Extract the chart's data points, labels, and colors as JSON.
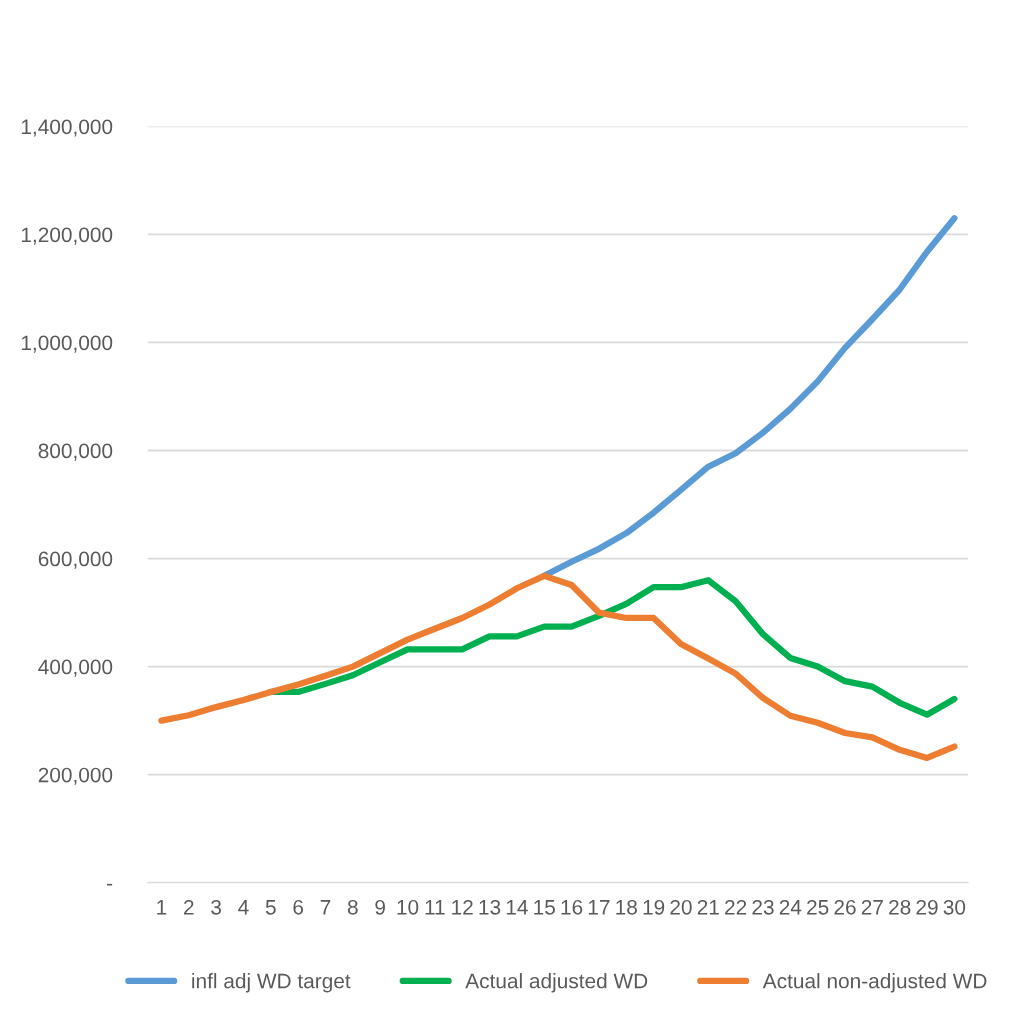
{
  "chart_data": {
    "type": "line",
    "categories": [
      "1",
      "2",
      "3",
      "4",
      "5",
      "6",
      "7",
      "8",
      "9",
      "10",
      "11",
      "12",
      "13",
      "14",
      "15",
      "16",
      "17",
      "18",
      "19",
      "20",
      "21",
      "22",
      "23",
      "24",
      "25",
      "26",
      "27",
      "28",
      "29",
      "30"
    ],
    "series": [
      {
        "name": "infl adj WD target",
        "color": "#5b9bd5",
        "values": [
          null,
          null,
          null,
          null,
          null,
          null,
          null,
          null,
          null,
          null,
          null,
          null,
          null,
          null,
          568000,
          594000,
          618000,
          647000,
          685000,
          727000,
          770000,
          795000,
          833000,
          877000,
          928000,
          990000,
          1043000,
          1098000,
          1168000,
          1230000
        ]
      },
      {
        "name": "Actual adjusted WD",
        "color": "#00b050",
        "values": [
          null,
          null,
          null,
          null,
          353000,
          353000,
          368000,
          384000,
          408000,
          432000,
          432000,
          432000,
          456000,
          456000,
          474000,
          474000,
          494000,
          516000,
          547000,
          547000,
          560000,
          521000,
          460000,
          416000,
          400000,
          373000,
          363000,
          333000,
          311000,
          340000
        ]
      },
      {
        "name": "Actual non-adjusted WD",
        "color": "#ed7d31",
        "values": [
          300000,
          310000,
          325000,
          338000,
          353000,
          367000,
          383000,
          400000,
          425000,
          450000,
          470000,
          490000,
          515000,
          545000,
          568000,
          551000,
          500000,
          490000,
          490000,
          442000,
          415000,
          387000,
          342000,
          309000,
          296000,
          277000,
          269000,
          246000,
          231000,
          252000
        ]
      }
    ],
    "ylim": [
      0,
      1400000
    ],
    "yticks": [
      {
        "value": 0,
        "label": "-"
      },
      {
        "value": 200000,
        "label": "200,000"
      },
      {
        "value": 400000,
        "label": "400,000"
      },
      {
        "value": 600000,
        "label": "600,000"
      },
      {
        "value": 800000,
        "label": "800,000"
      },
      {
        "value": 1000000,
        "label": "1,000,000"
      },
      {
        "value": 1200000,
        "label": "1,200,000"
      },
      {
        "value": 1400000,
        "label": "1,400,000"
      }
    ],
    "grid": "y",
    "legend": "bottom",
    "marker": "none",
    "line_style": "solid"
  }
}
